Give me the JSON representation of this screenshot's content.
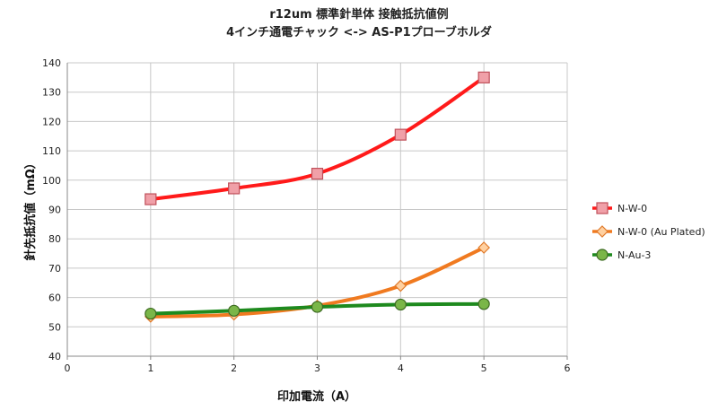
{
  "chart_data": {
    "type": "line",
    "title": "r12um 標準針単体 接触抵抗値例",
    "subtitle": "4インチ通電チャック <-> AS-P1プローブホルダ",
    "xlabel": "印加電流（A）",
    "ylabel": "針先抵抗値（mΩ）",
    "xlim": [
      0,
      6
    ],
    "ylim": [
      40,
      140
    ],
    "xticks": [
      "0",
      "1",
      "2",
      "3",
      "4",
      "5",
      "6"
    ],
    "yticks": [
      "40",
      "50",
      "60",
      "70",
      "80",
      "90",
      "100",
      "110",
      "120",
      "130",
      "140"
    ],
    "grid": true,
    "legend_position": "right",
    "smooth": true,
    "series": [
      {
        "name": "N-W-0",
        "color": "#ff1a1a",
        "marker": "square",
        "marker_fill": "#f0a0a8",
        "marker_stroke": "#c0505a",
        "x": [
          1,
          2,
          3,
          4,
          5
        ],
        "values": [
          93.5,
          97.2,
          102.2,
          115.5,
          135
        ]
      },
      {
        "name": "N-W-0 (Au Plated)",
        "color": "#f07a20",
        "marker": "diamond",
        "marker_fill": "#ffd0a0",
        "marker_stroke": "#e07a2a",
        "x": [
          1,
          2,
          3,
          4,
          5
        ],
        "values": [
          53.5,
          54.2,
          57.2,
          64,
          77
        ]
      },
      {
        "name": "N-Au-3",
        "color": "#1e8a1e",
        "marker": "circle",
        "marker_fill": "#7ab648",
        "marker_stroke": "#3d6b22",
        "x": [
          1,
          2,
          3,
          4,
          5
        ],
        "values": [
          54.5,
          55.5,
          56.8,
          57.6,
          57.8
        ]
      }
    ]
  }
}
